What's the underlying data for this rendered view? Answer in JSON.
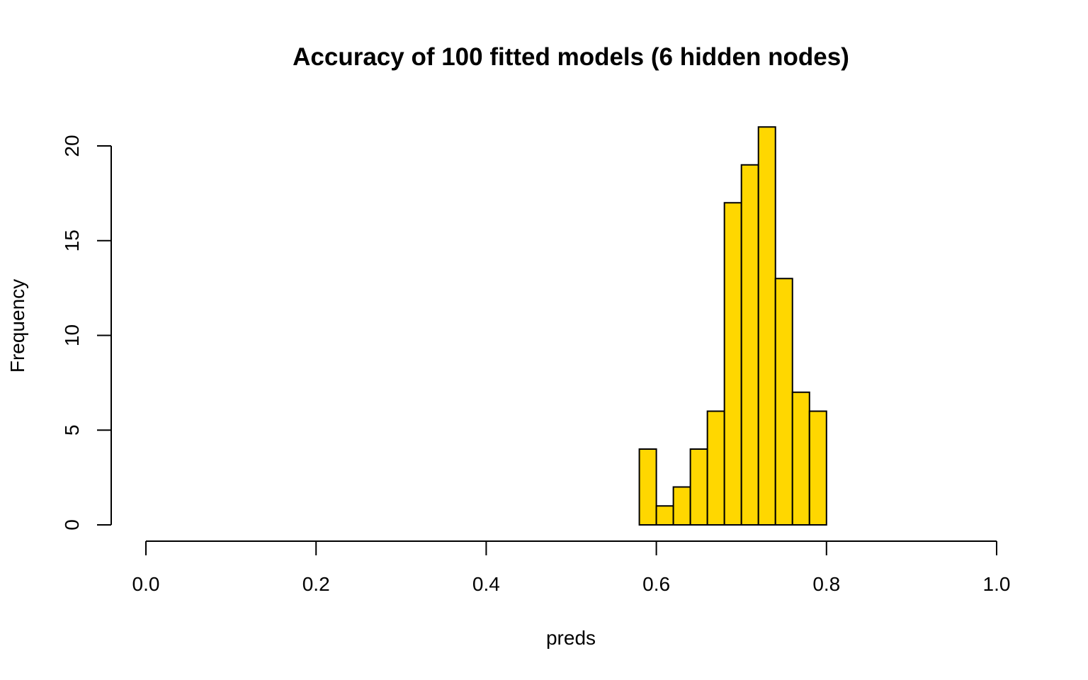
{
  "chart_data": {
    "type": "bar",
    "title": "Accuracy of 100 fitted models (6 hidden nodes)",
    "xlabel": "preds",
    "ylabel": "Frequency",
    "xlim": [
      0.0,
      1.0
    ],
    "ylim": [
      0,
      21
    ],
    "x_ticks": [
      "0.0",
      "0.2",
      "0.4",
      "0.6",
      "0.8",
      "1.0"
    ],
    "y_ticks": [
      "0",
      "5",
      "10",
      "15",
      "20"
    ],
    "bins": [
      {
        "start": 0.58,
        "end": 0.6,
        "count": 4
      },
      {
        "start": 0.6,
        "end": 0.62,
        "count": 1
      },
      {
        "start": 0.62,
        "end": 0.64,
        "count": 2
      },
      {
        "start": 0.64,
        "end": 0.66,
        "count": 4
      },
      {
        "start": 0.66,
        "end": 0.68,
        "count": 6
      },
      {
        "start": 0.68,
        "end": 0.7,
        "count": 17
      },
      {
        "start": 0.7,
        "end": 0.72,
        "count": 19
      },
      {
        "start": 0.72,
        "end": 0.74,
        "count": 21
      },
      {
        "start": 0.74,
        "end": 0.76,
        "count": 13
      },
      {
        "start": 0.76,
        "end": 0.78,
        "count": 7
      },
      {
        "start": 0.78,
        "end": 0.8,
        "count": 6
      }
    ],
    "bar_color": "#FFD700",
    "grid": false
  }
}
